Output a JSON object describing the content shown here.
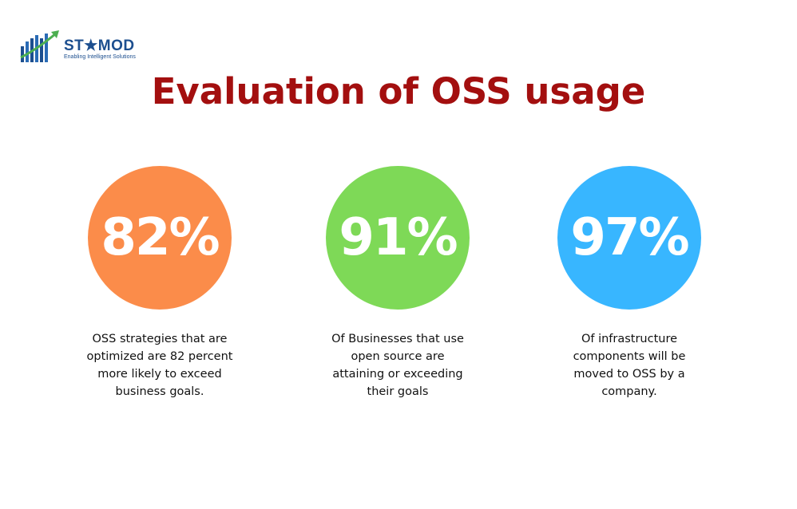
{
  "logo": {
    "name": "ST★MOD",
    "tagline": "Enabling Intelligent Solutions"
  },
  "title": "Evaluation of OSS usage",
  "stats": [
    {
      "value": "82%",
      "color": "#fb8c4a",
      "description": [
        "OSS strategies that are",
        "optimized are 82 percent",
        "more likely to exceed",
        "business goals."
      ]
    },
    {
      "value": "91%",
      "color": "#7ed957",
      "description": [
        "Of Businesses that use",
        "open source are",
        "attaining or exceeding",
        "their goals"
      ]
    },
    {
      "value": "97%",
      "color": "#38b6ff",
      "description": [
        "Of infrastructure",
        "components will be",
        "moved to OSS by a",
        "company."
      ]
    }
  ]
}
